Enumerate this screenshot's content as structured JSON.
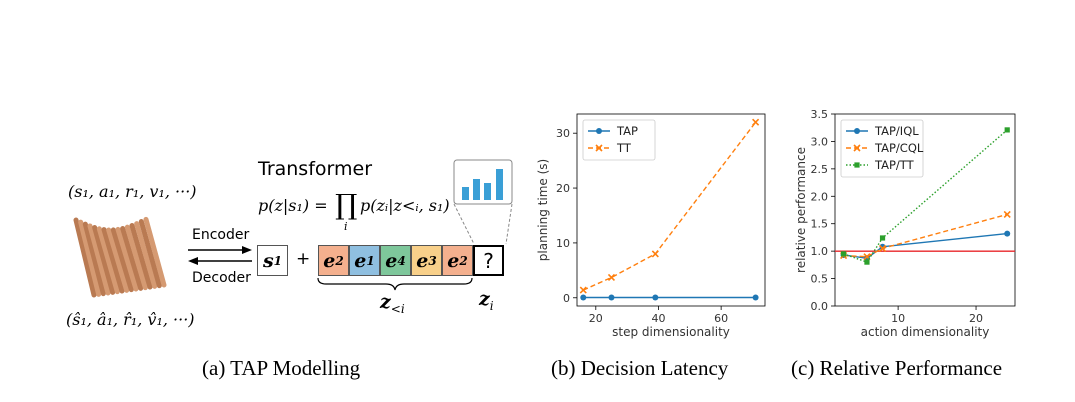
{
  "panel_a": {
    "transformer_label": "Transformer",
    "formula_lhs": "p(z|s₁) =",
    "formula_prod": "∏",
    "formula_index": "i",
    "formula_rhs": "p(zᵢ|z<ᵢ, s₁)",
    "top_sequence": "(s₁, a₁, r₁, v₁, ···)",
    "bottom_sequence": "(ŝ₁, â₁, r̂₁, v̂₁, ···)",
    "encoder_label": "Encoder",
    "decoder_label": "Decoder",
    "state_token": "s",
    "state_token_sub": "1",
    "plus_sign": "+",
    "tokens": [
      {
        "label": "e",
        "sub": "2",
        "color": "#f4b08e"
      },
      {
        "label": "e",
        "sub": "1",
        "color": "#8fbfe0"
      },
      {
        "label": "e",
        "sub": "4",
        "color": "#7ec79b"
      },
      {
        "label": "e",
        "sub": "3",
        "color": "#f8d08a"
      },
      {
        "label": "e",
        "sub": "2",
        "color": "#f4b08e"
      }
    ],
    "unknown_token": "?",
    "z_lt_i_label": "z",
    "z_lt_i_sub": "<i",
    "z_i_label": "z",
    "z_i_sub": "i",
    "caption": "(a) TAP Modelling"
  },
  "colors": {
    "tap": "#1f77b4",
    "tt": "#ff7f0e",
    "tt_green": "#2ca02c",
    "baseline": "#e8262a",
    "bars": "#3a9fd6"
  },
  "chart_data": [
    {
      "type": "line",
      "title": "",
      "xlabel": "step dimensionality",
      "ylabel": "planning time (s)",
      "xlim": [
        14,
        74
      ],
      "ylim": [
        -1.5,
        33.5
      ],
      "xticks": [
        20,
        40,
        60
      ],
      "yticks": [
        0,
        10,
        20,
        30
      ],
      "legend": "top-left",
      "series": [
        {
          "name": "TAP",
          "x": [
            16,
            25,
            39,
            71
          ],
          "y": [
            0.05,
            0.05,
            0.05,
            0.05
          ],
          "marker": "circle",
          "dash": "solid",
          "color": "#1f77b4"
        },
        {
          "name": "TT",
          "x": [
            16,
            25,
            39,
            71
          ],
          "y": [
            1.4,
            3.7,
            8.0,
            32.0
          ],
          "marker": "x",
          "dash": "dashed",
          "color": "#ff7f0e"
        }
      ],
      "caption": "(b) Decision Latency"
    },
    {
      "type": "line",
      "title": "",
      "xlabel": "action dimensionality",
      "ylabel": "relative performance",
      "xlim": [
        1.9,
        25
      ],
      "ylim": [
        0.0,
        3.5
      ],
      "xticks": [
        10,
        20
      ],
      "yticks": [
        0.0,
        0.5,
        1.0,
        1.5,
        2.0,
        2.5,
        3.0,
        3.5
      ],
      "yticklabels": [
        "0.0",
        "0.5",
        "1.0",
        "1.5",
        "2.0",
        "2.5",
        "3.0",
        "3.5"
      ],
      "baseline": 1.0,
      "legend": "top-left",
      "series": [
        {
          "name": "TAP/IQL",
          "x": [
            3,
            6,
            8,
            24
          ],
          "y": [
            0.93,
            0.87,
            1.08,
            1.32
          ],
          "marker": "circle",
          "dash": "solid",
          "color": "#1f77b4"
        },
        {
          "name": "TAP/CQL",
          "x": [
            3,
            6,
            8,
            24
          ],
          "y": [
            0.92,
            0.9,
            1.05,
            1.67
          ],
          "marker": "x",
          "dash": "dashed",
          "color": "#ff7f0e"
        },
        {
          "name": "TAP/TT",
          "x": [
            3,
            6,
            8,
            24
          ],
          "y": [
            0.95,
            0.8,
            1.24,
            3.21
          ],
          "marker": "square",
          "dash": "dotted",
          "color": "#2ca02c"
        }
      ],
      "caption": "(c) Relative Performance"
    }
  ]
}
